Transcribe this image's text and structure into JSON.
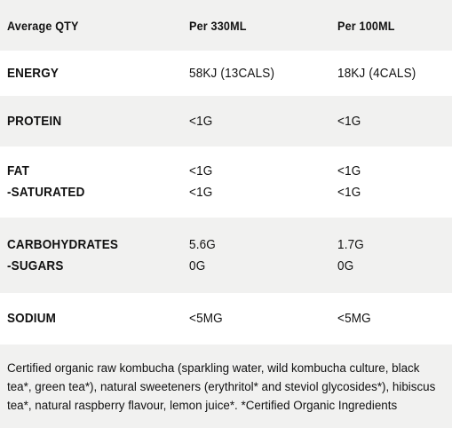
{
  "table": {
    "header": [
      "Average QTY",
      "Per 330ML",
      "Per 100ML"
    ],
    "rows": [
      [
        [
          "ENERGY"
        ],
        [
          "58KJ (13CALS)"
        ],
        [
          "18KJ (4CALS)"
        ]
      ],
      [
        [
          "PROTEIN"
        ],
        [
          "<1G"
        ],
        [
          "<1G"
        ]
      ],
      [
        [
          "FAT",
          "-SATURATED"
        ],
        [
          "<1G",
          "<1G"
        ],
        [
          "<1G",
          "<1G"
        ]
      ],
      [
        [
          "CARBOHYDRATES",
          "-SUGARS"
        ],
        [
          "5.6G",
          "0G"
        ],
        [
          "1.7G",
          "0G"
        ]
      ],
      [
        [
          "SODIUM"
        ],
        [
          "<5MG"
        ],
        [
          "<5MG"
        ]
      ]
    ]
  },
  "ingredients": "Certified organic raw kombucha (sparkling water, wild kombucha culture, black tea*, green tea*), natural sweeteners (erythritol* and steviol glycosides*), hibiscus tea*, natural raspberry flavour, lemon juice*. *Certified Organic Ingredients"
}
